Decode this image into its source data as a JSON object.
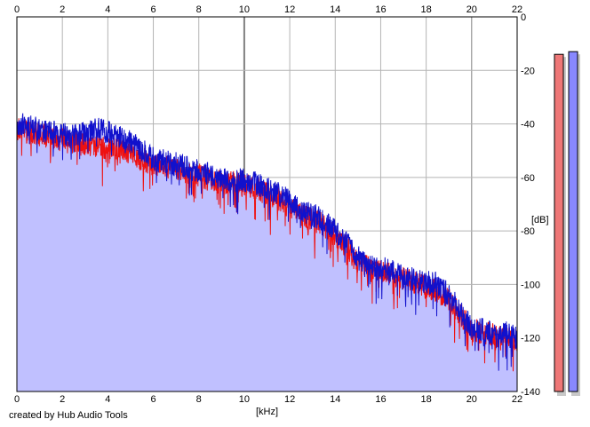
{
  "chart_data": {
    "type": "area",
    "xlabel": "[kHz]",
    "ylabel": "[dB]",
    "xlim": [
      0,
      22
    ],
    "ylim": [
      -140,
      0
    ],
    "x_ticks": [
      "0",
      "2",
      "4",
      "6",
      "8",
      "10",
      "12",
      "14",
      "16",
      "18",
      "20",
      "22"
    ],
    "y_ticks": [
      "0",
      "-20",
      "-40",
      "-60",
      "-80",
      "-100",
      "-120",
      "-140"
    ],
    "grid": true,
    "series": [
      {
        "color": "#ee1111",
        "x": [
          0,
          0.5,
          1,
          1.5,
          2,
          2.5,
          3,
          3.5,
          4,
          4.5,
          5,
          5.5,
          6,
          6.5,
          7,
          7.5,
          8,
          8.5,
          9,
          9.5,
          10,
          10.5,
          11,
          11.5,
          12,
          12.5,
          13,
          13.5,
          14,
          14.5,
          15,
          15.5,
          16,
          16.5,
          17,
          17.5,
          18,
          18.5,
          19,
          19.5,
          20,
          20.5,
          21,
          21.5,
          22
        ],
        "y": [
          -42,
          -43,
          -44,
          -45,
          -46,
          -47,
          -48,
          -48,
          -49,
          -50,
          -51,
          -53,
          -55,
          -56,
          -57,
          -58,
          -59,
          -61,
          -62,
          -62,
          -63,
          -64,
          -66,
          -68,
          -71,
          -74,
          -76,
          -78,
          -82,
          -86,
          -92,
          -94,
          -95,
          -96,
          -98,
          -99,
          -101,
          -103,
          -106,
          -111,
          -117,
          -118,
          -119,
          -120,
          -121
        ]
      },
      {
        "color": "#1111cc",
        "x": [
          0,
          0.5,
          1,
          1.5,
          2,
          2.5,
          3,
          3.5,
          4,
          4.5,
          5,
          5.5,
          6,
          6.5,
          7,
          7.5,
          8,
          8.5,
          9,
          9.5,
          10,
          10.5,
          11,
          11.5,
          12,
          12.5,
          13,
          13.5,
          14,
          14.5,
          15,
          15.5,
          16,
          16.5,
          17,
          17.5,
          18,
          18.5,
          19,
          19.5,
          20,
          20.5,
          21,
          21.5,
          22
        ],
        "y": [
          -40,
          -41,
          -42,
          -43,
          -44,
          -44,
          -43,
          -42,
          -43,
          -45,
          -47,
          -50,
          -53,
          -54,
          -55,
          -56,
          -58,
          -59,
          -60,
          -61,
          -61,
          -62,
          -64,
          -66,
          -69,
          -72,
          -74,
          -76,
          -80,
          -84,
          -90,
          -93,
          -94,
          -95,
          -97,
          -98,
          -99,
          -100,
          -104,
          -110,
          -116,
          -117,
          -118,
          -118,
          -120
        ]
      }
    ],
    "fill_color": "#c0c0ff",
    "level_meters": [
      {
        "color": "#ee7777",
        "level_db": -14
      },
      {
        "color": "#8888ff",
        "level_db": -13
      }
    ]
  },
  "credit_text": "created by Hub Audio Tools"
}
